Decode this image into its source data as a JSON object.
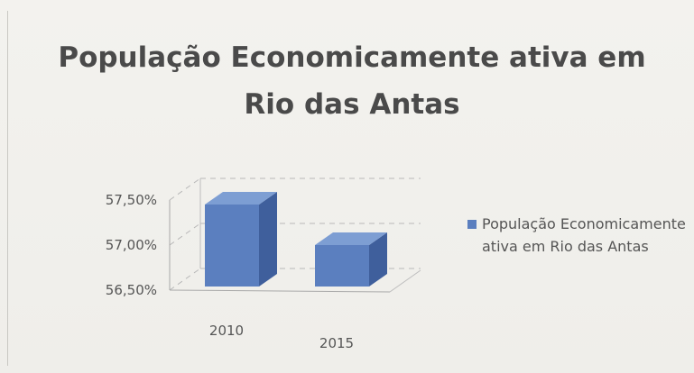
{
  "chart_data": {
    "type": "bar",
    "title": "População Economicamente ativa em Rio das Antas",
    "categories": [
      "2010",
      "2015"
    ],
    "series": [
      {
        "name": "População Economicamente ativa em Rio das Antas",
        "values": [
          57.45,
          57.0
        ],
        "color": "#5b7fbf"
      }
    ],
    "ylim": [
      56.5,
      57.5
    ],
    "ytick_values": [
      56.5,
      57.0,
      57.5
    ],
    "yticks": [
      "56,50%",
      "57,00%",
      "57,50%"
    ],
    "xlabel": "",
    "ylabel": "",
    "grid": true,
    "legend_position": "right",
    "three_d": true
  }
}
